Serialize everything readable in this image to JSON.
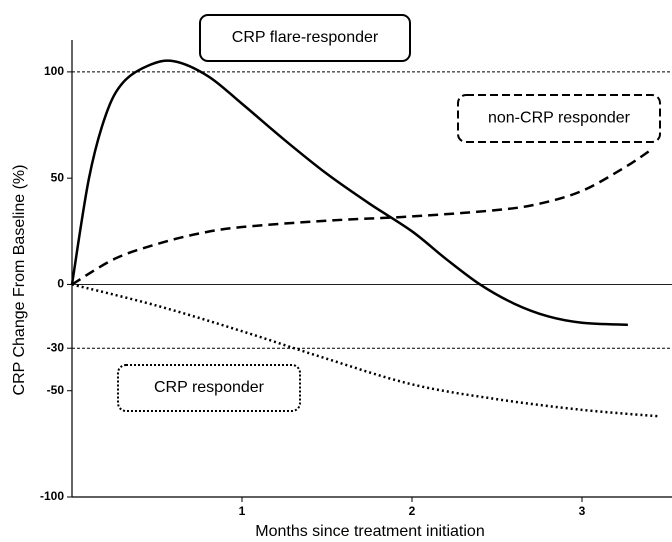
{
  "chart_data": {
    "type": "line",
    "x_label": "Months since treatment initiation",
    "y_label": "CRP Change From Baseline (%)",
    "xlim": [
      0,
      3.5
    ],
    "xticks": [
      1,
      2,
      3
    ],
    "ylim": [
      -100,
      115
    ],
    "yticks": [
      -100,
      -50,
      -30,
      0,
      50,
      100
    ],
    "reference_lines": [
      {
        "value": 100,
        "style": "dashed"
      },
      {
        "value": 0,
        "style": "solid"
      },
      {
        "value": -30,
        "style": "dashed"
      }
    ],
    "series": [
      {
        "name": "CRP flare-responder",
        "color": "#000000",
        "style": "solid",
        "x": [
          0,
          0.1,
          0.2,
          0.3,
          0.45,
          0.6,
          0.8,
          1.0,
          1.25,
          1.5,
          1.75,
          2.0,
          2.2,
          2.4,
          2.6,
          2.8,
          3.0,
          3.27
        ],
        "values": [
          0,
          50,
          80,
          95,
          103,
          105,
          98,
          85,
          68,
          52,
          38,
          25,
          12,
          0,
          -9,
          -15,
          -18,
          -19
        ]
      },
      {
        "name": "non-CRP responder",
        "color": "#000000",
        "style": "dashed",
        "x": [
          0,
          0.25,
          0.5,
          0.75,
          1,
          1.5,
          2,
          2.5,
          2.75,
          3,
          3.25,
          3.4
        ],
        "values": [
          0,
          12,
          19,
          24,
          27,
          30,
          32,
          35,
          38,
          44,
          55,
          63
        ]
      },
      {
        "name": "CRP responder",
        "color": "#000000",
        "style": "dotted",
        "x": [
          0,
          0.5,
          1,
          1.5,
          2,
          2.5,
          3,
          3.45
        ],
        "values": [
          0,
          -10,
          -22,
          -35,
          -47,
          -54,
          -59,
          -62
        ]
      }
    ]
  }
}
